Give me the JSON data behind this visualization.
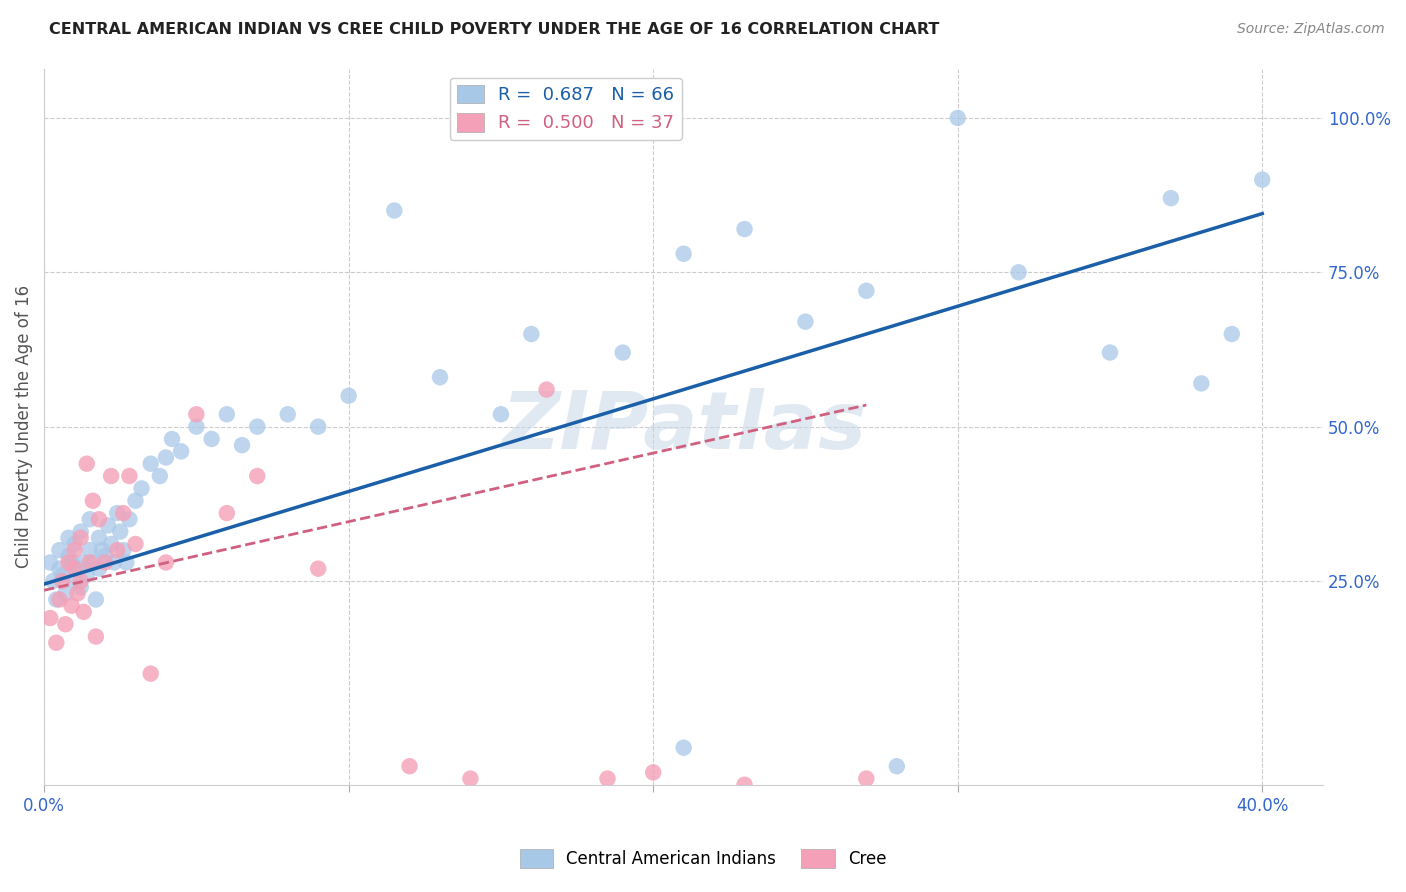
{
  "title": "CENTRAL AMERICAN INDIAN VS CREE CHILD POVERTY UNDER THE AGE OF 16 CORRELATION CHART",
  "source": "Source: ZipAtlas.com",
  "ylabel": "Child Poverty Under the Age of 16",
  "xlim": [
    0.0,
    0.42
  ],
  "ylim": [
    -0.08,
    1.08
  ],
  "xticks": [
    0.0,
    0.1,
    0.2,
    0.3,
    0.4
  ],
  "xtick_labels": [
    "0.0%",
    "",
    "",
    "",
    "40.0%"
  ],
  "yticks": [
    0.25,
    0.5,
    0.75,
    1.0
  ],
  "ytick_labels": [
    "25.0%",
    "50.0%",
    "75.0%",
    "100.0%"
  ],
  "blue_color": "#a8c8e8",
  "pink_color": "#f4a0b8",
  "line_blue": "#1a5fa8",
  "line_pink": "#d06080",
  "watermark": "ZIPatlas",
  "blue_scatter_x": [
    0.002,
    0.003,
    0.004,
    0.005,
    0.005,
    0.006,
    0.007,
    0.008,
    0.008,
    0.009,
    0.01,
    0.01,
    0.011,
    0.012,
    0.012,
    0.013,
    0.014,
    0.015,
    0.015,
    0.016,
    0.017,
    0.018,
    0.018,
    0.019,
    0.02,
    0.021,
    0.022,
    0.023,
    0.024,
    0.025,
    0.026,
    0.027,
    0.028,
    0.03,
    0.032,
    0.035,
    0.038,
    0.04,
    0.042,
    0.045,
    0.05,
    0.055,
    0.06,
    0.065,
    0.07,
    0.08,
    0.09,
    0.1,
    0.115,
    0.13,
    0.15,
    0.16,
    0.19,
    0.21,
    0.23,
    0.25,
    0.27,
    0.3,
    0.32,
    0.35,
    0.37,
    0.38,
    0.39,
    0.4,
    0.21,
    0.28
  ],
  "blue_scatter_y": [
    0.28,
    0.25,
    0.22,
    0.27,
    0.3,
    0.26,
    0.23,
    0.29,
    0.32,
    0.28,
    0.25,
    0.31,
    0.27,
    0.24,
    0.33,
    0.28,
    0.26,
    0.3,
    0.35,
    0.28,
    0.22,
    0.32,
    0.27,
    0.3,
    0.29,
    0.34,
    0.31,
    0.28,
    0.36,
    0.33,
    0.3,
    0.28,
    0.35,
    0.38,
    0.4,
    0.44,
    0.42,
    0.45,
    0.48,
    0.46,
    0.5,
    0.48,
    0.52,
    0.47,
    0.5,
    0.52,
    0.5,
    0.55,
    0.85,
    0.58,
    0.52,
    0.65,
    0.62,
    0.78,
    0.82,
    0.67,
    0.72,
    1.0,
    0.75,
    0.62,
    0.87,
    0.57,
    0.65,
    0.9,
    -0.02,
    -0.05
  ],
  "pink_scatter_x": [
    0.002,
    0.004,
    0.005,
    0.006,
    0.007,
    0.008,
    0.009,
    0.01,
    0.01,
    0.011,
    0.012,
    0.012,
    0.013,
    0.014,
    0.015,
    0.016,
    0.017,
    0.018,
    0.02,
    0.022,
    0.024,
    0.026,
    0.028,
    0.03,
    0.035,
    0.04,
    0.05,
    0.06,
    0.07,
    0.09,
    0.12,
    0.14,
    0.165,
    0.185,
    0.2,
    0.23,
    0.27
  ],
  "pink_scatter_y": [
    0.19,
    0.15,
    0.22,
    0.25,
    0.18,
    0.28,
    0.21,
    0.3,
    0.27,
    0.23,
    0.32,
    0.25,
    0.2,
    0.44,
    0.28,
    0.38,
    0.16,
    0.35,
    0.28,
    0.42,
    0.3,
    0.36,
    0.42,
    0.31,
    0.1,
    0.28,
    0.52,
    0.36,
    0.42,
    0.27,
    -0.05,
    -0.07,
    0.56,
    -0.07,
    -0.06,
    -0.08,
    -0.07
  ],
  "blue_line_x": [
    0.0,
    0.4
  ],
  "blue_line_y": [
    0.245,
    0.845
  ],
  "pink_line_x": [
    0.0,
    0.27
  ],
  "pink_line_y": [
    0.235,
    0.535
  ]
}
